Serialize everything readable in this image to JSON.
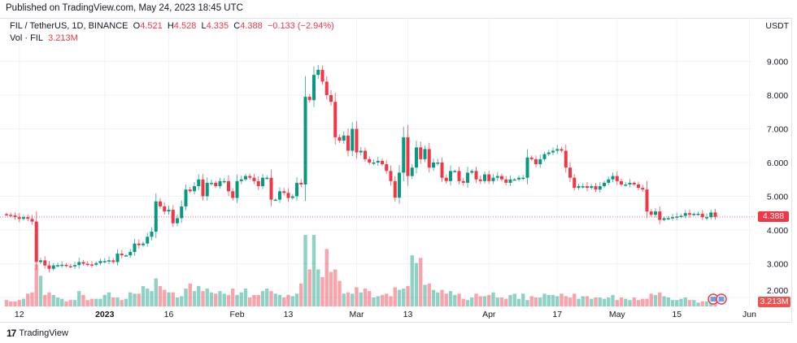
{
  "published": "Published on TradingView.com, May 24, 2023 18:45 UTC",
  "legend": {
    "symbol": "FIL / TetherUS, 1D, BINANCE",
    "o_label": "O",
    "o": "4.521",
    "h_label": "H",
    "h": "4.528",
    "l_label": "L",
    "l": "4.335",
    "c_label": "C",
    "c": "4.388",
    "change": "−0.133 (−2.94%)",
    "vol_label": "Vol · FIL",
    "vol_value": "3.213M"
  },
  "currency": "USDT",
  "price_tag": "4.388",
  "volume_tag": "3.213M",
  "footer": {
    "brand": "TradingView"
  },
  "colors": {
    "up": "#089981",
    "down": "#f23645",
    "grid": "#f0f3fa",
    "last_price_line": "#f23645"
  },
  "chart_data": {
    "type": "candlestick",
    "y_ticks": [
      "2.000",
      "3.000",
      "4.000",
      "5.000",
      "6.000",
      "7.000",
      "8.000",
      "9.000"
    ],
    "ylim": [
      2,
      9.5
    ],
    "y_scale": "linear",
    "grid": true,
    "x_ticks": [
      {
        "label": "12",
        "date": "2022-12-12"
      },
      {
        "label": "2023",
        "date": "2023-01-01"
      },
      {
        "label": "16",
        "date": "2023-01-16"
      },
      {
        "label": "Feb",
        "date": "2023-02-01"
      },
      {
        "label": "13",
        "date": "2023-02-13"
      },
      {
        "label": "Mar",
        "date": "2023-03-01"
      },
      {
        "label": "13",
        "date": "2023-03-13"
      },
      {
        "label": "Apr",
        "date": "2023-04-01"
      },
      {
        "label": "17",
        "date": "2023-04-17"
      },
      {
        "label": "May",
        "date": "2023-05-01"
      },
      {
        "label": "15",
        "date": "2023-05-15"
      },
      {
        "label": "Jun",
        "date": "2023-06-01"
      }
    ],
    "last_price": 4.388,
    "months": [
      {
        "month": "2022-12",
        "first_day": 9,
        "close": [
          4.45,
          4.43,
          4.38,
          4.33,
          4.38,
          4.33,
          4.25,
          3.05,
          3.1,
          2.95,
          2.85,
          2.95,
          2.96,
          2.97,
          2.93,
          2.92,
          2.96,
          3.05,
          3.0,
          2.98,
          2.97,
          3.02,
          3.08
        ],
        "volume_m": [
          5,
          4,
          4,
          5,
          6,
          10,
          11,
          33,
          24,
          9,
          11,
          9,
          7,
          6,
          4,
          5,
          5,
          12,
          9,
          5,
          6,
          6,
          6
        ]
      },
      {
        "month": "2023-01",
        "first_day": 1,
        "close": [
          3.08,
          3.1,
          3.05,
          3.3,
          3.25,
          3.25,
          3.35,
          3.6,
          3.55,
          3.6,
          3.8,
          3.95,
          4.85,
          4.7,
          4.55,
          4.6,
          4.2,
          4.35,
          4.7,
          5.2,
          5.15,
          5.3,
          5.5,
          5.0,
          5.4,
          5.4,
          5.3,
          5.45,
          5.45,
          5.15,
          4.95
        ],
        "volume_m": [
          9,
          11,
          7,
          7,
          5,
          6,
          11,
          10,
          10,
          16,
          14,
          12,
          22,
          16,
          13,
          11,
          11,
          7,
          8,
          14,
          18,
          12,
          16,
          12,
          14,
          11,
          10,
          12,
          10,
          9,
          14
        ]
      },
      {
        "month": "2023-02",
        "first_day": 1,
        "close": [
          5.45,
          5.5,
          5.6,
          5.55,
          5.45,
          5.3,
          5.55,
          5.55,
          4.9,
          4.9,
          5.15,
          5.1,
          4.95,
          5.0,
          5.4,
          5.35,
          7.95,
          7.85,
          8.6,
          8.75,
          8.4,
          8.0,
          7.8,
          6.75,
          6.65,
          6.8,
          6.35,
          7.0
        ],
        "volume_m": [
          9,
          11,
          14,
          7,
          9,
          9,
          12,
          14,
          12,
          10,
          9,
          7,
          9,
          8,
          10,
          18,
          56,
          29,
          56,
          29,
          23,
          45,
          27,
          29,
          20,
          10,
          11,
          10
        ]
      },
      {
        "month": "2023-03",
        "first_day": 1,
        "close": [
          6.3,
          6.35,
          6.1,
          6.0,
          6.0,
          6.05,
          5.95,
          5.75,
          5.45,
          4.96,
          5.7,
          6.75,
          5.6,
          5.85,
          6.45,
          6.1,
          6.4,
          5.85,
          6.0,
          6.0,
          5.55,
          5.45,
          5.75,
          5.75,
          5.45,
          5.4,
          5.7,
          5.75,
          5.5,
          5.45,
          5.65
        ],
        "volume_m": [
          15,
          11,
          14,
          12,
          7,
          8,
          9,
          10,
          8,
          15,
          13,
          14,
          16,
          40,
          34,
          38,
          17,
          18,
          13,
          11,
          13,
          10,
          12,
          9,
          10,
          6,
          5,
          7,
          10,
          8,
          8
        ]
      },
      {
        "month": "2023-04",
        "first_day": 1,
        "close": [
          5.45,
          5.55,
          5.6,
          5.5,
          5.4,
          5.5,
          5.5,
          5.55,
          5.55,
          6.15,
          6.1,
          5.95,
          6.1,
          6.25,
          6.3,
          6.35,
          6.4,
          6.35,
          5.85,
          5.55,
          5.25,
          5.3,
          5.3,
          5.25,
          5.3,
          5.2,
          5.3,
          5.4,
          5.5,
          5.6
        ],
        "volume_m": [
          9,
          11,
          7,
          7,
          6,
          9,
          10,
          6,
          10,
          5,
          8,
          7,
          7,
          10,
          9,
          9,
          8,
          10,
          8,
          7,
          10,
          6,
          8,
          8,
          6,
          7,
          7,
          6,
          7,
          9
        ]
      },
      {
        "month": "2023-05",
        "first_day": 1,
        "close": [
          5.45,
          5.35,
          5.35,
          5.4,
          5.35,
          5.25,
          5.2,
          4.55,
          4.45,
          4.55,
          4.3,
          4.35,
          4.35,
          4.38,
          4.4,
          4.42,
          4.5,
          4.45,
          4.48,
          4.48,
          4.38,
          4.38,
          4.521,
          4.388
        ],
        "volume_m": [
          5,
          7,
          6,
          5,
          7,
          5,
          6,
          6,
          10,
          9,
          11,
          8,
          7,
          5,
          5,
          6,
          7,
          5,
          5,
          3,
          4,
          4,
          5,
          3.213
        ]
      }
    ]
  }
}
